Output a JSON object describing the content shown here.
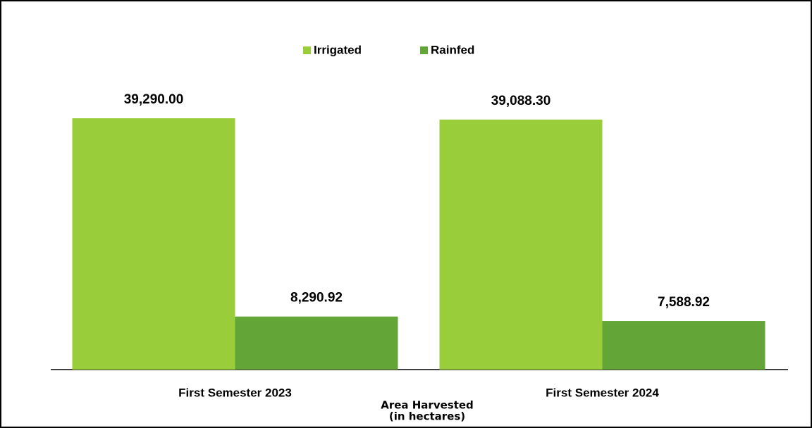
{
  "chart_data": {
    "type": "bar",
    "categories": [
      "First Semester 2023",
      "First Semester 2024"
    ],
    "series": [
      {
        "name": "Irrigated",
        "color": "#9acd3a",
        "values": [
          39290,
          39088.3
        ],
        "value_labels": [
          "39,290.00",
          "39,088.30"
        ]
      },
      {
        "name": "Rainfed",
        "color": "#63a637",
        "values": [
          8290.92,
          7588.92
        ],
        "value_labels": [
          "8,290.92",
          "7,588.92"
        ]
      }
    ],
    "x_label": [
      "Area Harvested",
      "(in hectares)"
    ],
    "legend": "top"
  }
}
